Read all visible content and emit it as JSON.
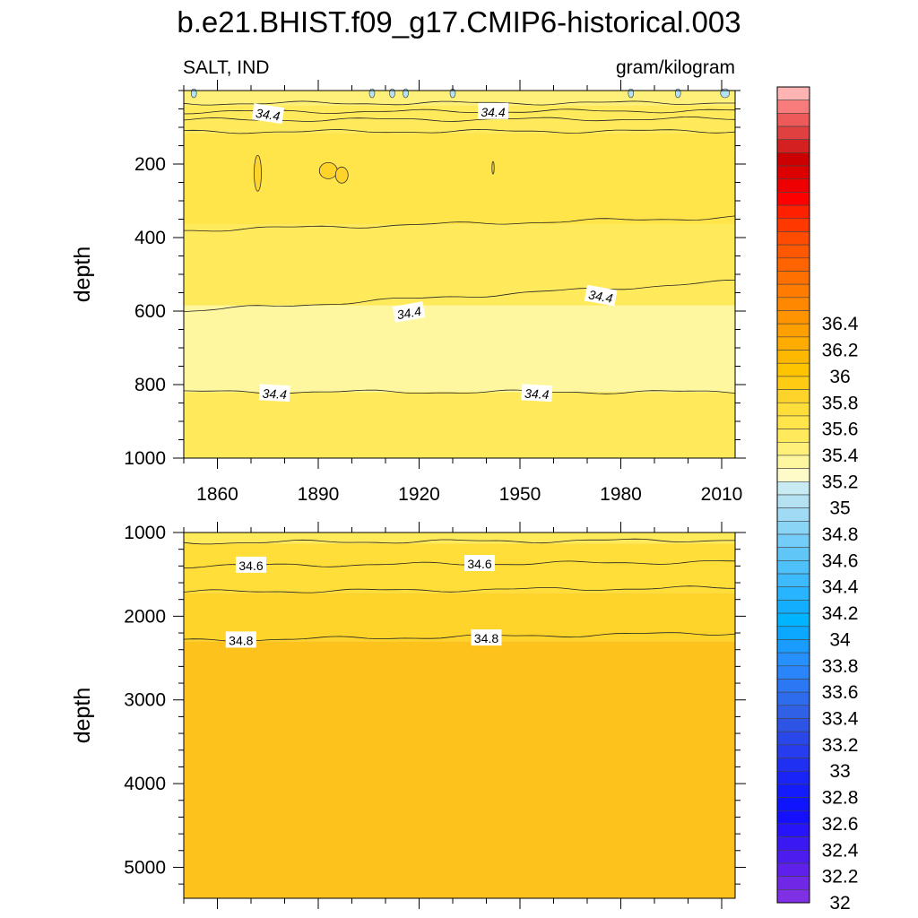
{
  "title": "b.e21.BHIST.f09_g17.CMIP6-historical.003",
  "chart_data": {
    "type": "heatmap",
    "variable_label": "SALT, IND",
    "units_label": "gram/kilogram",
    "x_ticks": [
      "1860",
      "1890",
      "1920",
      "1950",
      "1980",
      "2010"
    ],
    "x_tick_values": [
      1860,
      1890,
      1920,
      1950,
      1980,
      2010
    ],
    "xlim": [
      1850,
      2014
    ],
    "panels": [
      {
        "name": "upper",
        "ylabel": "depth",
        "ylim": [
          0,
          1000
        ],
        "y_ticks": [
          "200",
          "400",
          "600",
          "800",
          "1000"
        ],
        "y_tick_values": [
          200,
          400,
          600,
          800,
          1000
        ],
        "bands": [
          {
            "top": 0,
            "bottom": 40,
            "color": "#fff07a"
          },
          {
            "top": 40,
            "bottom": 115,
            "color": "#ffea5c"
          },
          {
            "top": 115,
            "bottom": 365,
            "color": "#ffe44a"
          },
          {
            "top": 365,
            "bottom": 585,
            "color": "#ffea5c"
          },
          {
            "top": 585,
            "bottom": 820,
            "color": "#fff7a0"
          },
          {
            "top": 820,
            "bottom": 1000,
            "color": "#ffea5c"
          }
        ],
        "contours": [
          {
            "depth_start": 35,
            "depth_end": 33
          },
          {
            "depth_start": 58,
            "depth_end": 55
          },
          {
            "depth_start": 80,
            "depth_end": 77
          },
          {
            "depth_start": 112,
            "depth_end": 110
          },
          {
            "depth_start": 380,
            "depth_end": 345
          },
          {
            "depth_start": 600,
            "depth_end": 520
          },
          {
            "depth_start": 820,
            "depth_end": 820
          }
        ],
        "contour_labels": [
          {
            "text": "34.4",
            "year": 1875,
            "depth": 65,
            "angle": 8
          },
          {
            "text": "34.4",
            "year": 1942,
            "depth": 58,
            "angle": 0
          },
          {
            "text": "34.4",
            "year": 1917,
            "depth": 605,
            "angle": -10
          },
          {
            "text": "34.4",
            "year": 1974,
            "depth": 560,
            "angle": 10
          },
          {
            "text": "34.4",
            "year": 1877,
            "depth": 825,
            "angle": 3
          },
          {
            "text": "34.4",
            "year": 1955,
            "depth": 825,
            "angle": 3
          }
        ]
      },
      {
        "name": "lower",
        "ylabel": "depth",
        "ylim": [
          1000,
          5370
        ],
        "y_ticks": [
          "1000",
          "2000",
          "3000",
          "4000",
          "5000"
        ],
        "y_tick_values": [
          1000,
          2000,
          3000,
          4000,
          5000
        ],
        "bands": [
          {
            "top": 1000,
            "bottom": 1130,
            "color": "#ffea5c"
          },
          {
            "top": 1130,
            "bottom": 1720,
            "color": "#ffde3a"
          },
          {
            "top": 1720,
            "bottom": 2300,
            "color": "#ffd42a"
          },
          {
            "top": 2300,
            "bottom": 5370,
            "color": "#fdc21b"
          }
        ],
        "contours": [
          {
            "depth_start": 1120,
            "depth_end": 1090
          },
          {
            "depth_start": 1400,
            "depth_end": 1350
          },
          {
            "depth_start": 1710,
            "depth_end": 1660
          },
          {
            "depth_start": 2290,
            "depth_end": 2200
          }
        ],
        "contour_labels": [
          {
            "text": "34.6",
            "year": 1870,
            "depth": 1395,
            "angle": 0
          },
          {
            "text": "34.6",
            "year": 1938,
            "depth": 1375,
            "angle": 0
          },
          {
            "text": "34.8",
            "year": 1867,
            "depth": 2290,
            "angle": 0
          },
          {
            "text": "34.8",
            "year": 1940,
            "depth": 2265,
            "angle": 0
          }
        ]
      }
    ],
    "colorbar": {
      "levels_min": 32.0,
      "step": 0.1,
      "labels": [
        "36.4",
        "36.2",
        "36",
        "35.8",
        "35.6",
        "35.4",
        "35.2",
        "35",
        "34.8",
        "34.6",
        "34.4",
        "34.2",
        "34",
        "33.8",
        "33.6",
        "33.4",
        "33.2",
        "33",
        "32.8",
        "32.6",
        "32.4",
        "32.2",
        "32"
      ],
      "colors": [
        "#ffb4b4",
        "#f87c7c",
        "#ee5a5a",
        "#e04040",
        "#d42020",
        "#cc0000",
        "#dd0000",
        "#ee0000",
        "#ff0000",
        "#ff2000",
        "#ff3800",
        "#ff4c00",
        "#ff5800",
        "#ff6400",
        "#ff7000",
        "#ff7c00",
        "#ff8800",
        "#ff9400",
        "#ffa000",
        "#ffac00",
        "#ffb800",
        "#ffc400",
        "#ffcc14",
        "#ffd42a",
        "#ffde3a",
        "#ffe44a",
        "#ffea5c",
        "#fff07a",
        "#fff7a0",
        "#fffbc8",
        "#c8eaf2",
        "#b4e2f2",
        "#a0daf4",
        "#8ad4f6",
        "#74ccf8",
        "#60c6f8",
        "#4ec0fa",
        "#3cbafc",
        "#28b4fe",
        "#14aefe",
        "#00b4ff",
        "#0aa8ff",
        "#1a9cff",
        "#2690ff",
        "#2a84fa",
        "#2c78f4",
        "#2e6cee",
        "#3060e6",
        "#2e54e6",
        "#2a48ea",
        "#263cee",
        "#2030f2",
        "#1a24f6",
        "#141cfa",
        "#0e14fe",
        "#1410fe",
        "#2814f8",
        "#3a18f2",
        "#4c1cee",
        "#5e20ea",
        "#7028e6",
        "#8030e4"
      ]
    }
  }
}
